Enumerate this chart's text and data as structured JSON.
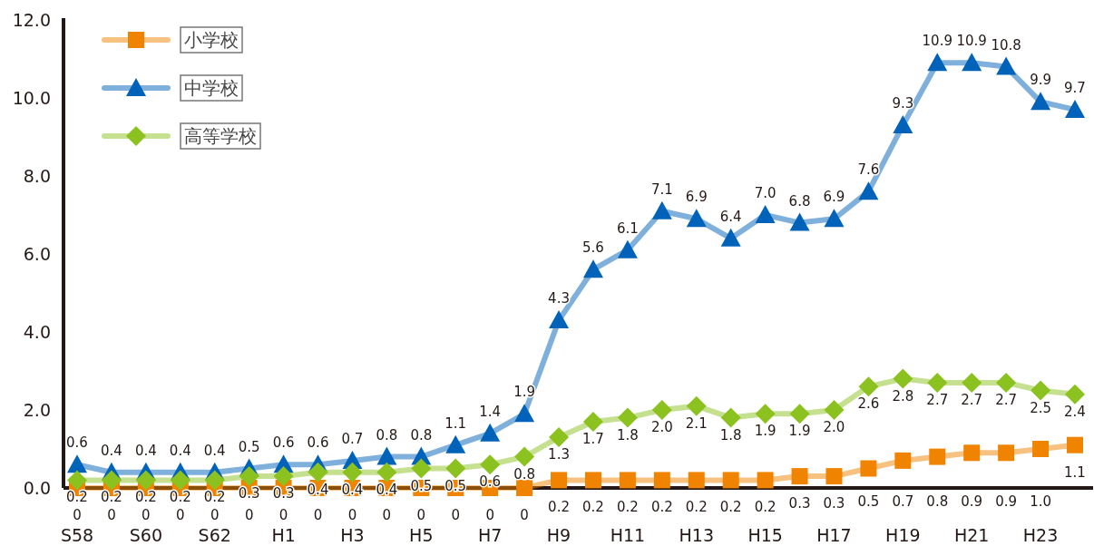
{
  "chart_data": {
    "type": "line",
    "categories": [
      "S58",
      null,
      "S60",
      null,
      "S62",
      null,
      "H1",
      null,
      "H3",
      null,
      "H5",
      null,
      "H7",
      null,
      "H9",
      null,
      "H11",
      null,
      "H13",
      null,
      "H15",
      null,
      "H17",
      null,
      "H19",
      null,
      "H21",
      null,
      "H23",
      null
    ],
    "series": [
      {
        "name": "小学校",
        "color": "#f08300",
        "marker": "square",
        "values": [
          0,
          0,
          0,
          0,
          0,
          0,
          0,
          0,
          0,
          0,
          0,
          0,
          0,
          0,
          0.2,
          0.2,
          0.2,
          0.2,
          0.2,
          0.2,
          0.2,
          0.3,
          0.3,
          0.5,
          0.7,
          0.8,
          0.9,
          0.9,
          1.0,
          1.1
        ],
        "value_labels": [
          "0",
          "0",
          "0",
          "0",
          "0",
          "0",
          "0",
          "0",
          "0",
          "0",
          "0",
          "0",
          "0",
          "0",
          "0.2",
          "0.2",
          "0.2",
          "0.2",
          "0.2",
          "0.2",
          "0.2",
          "0.3",
          "0.3",
          "0.5",
          "0.7",
          "0.8",
          "0.9",
          "0.9",
          "1.0",
          "1.1"
        ]
      },
      {
        "name": "中学校",
        "color": "#0062b8",
        "marker": "triangle",
        "values": [
          0.6,
          0.4,
          0.4,
          0.4,
          0.4,
          0.5,
          0.6,
          0.6,
          0.7,
          0.8,
          0.8,
          1.1,
          1.4,
          1.9,
          4.3,
          5.6,
          6.1,
          7.1,
          6.9,
          6.4,
          7.0,
          6.8,
          6.9,
          7.6,
          9.3,
          10.9,
          10.9,
          10.8,
          9.9,
          9.7
        ],
        "value_labels": [
          "0.6",
          "0.4",
          "0.4",
          "0.4",
          "0.4",
          "0.5",
          "0.6",
          "0.6",
          "0.7",
          "0.8",
          "0.8",
          "1.1",
          "1.4",
          "1.9",
          "4.3",
          "5.6",
          "6.1",
          "7.1",
          "6.9",
          "6.4",
          "7.0",
          "6.8",
          "6.9",
          "7.6",
          "9.3",
          "10.9",
          "10.9",
          "10.8",
          "9.9",
          "9.7"
        ]
      },
      {
        "name": "高等学校",
        "color": "#8cc21f",
        "marker": "diamond",
        "values": [
          0.2,
          0.2,
          0.2,
          0.2,
          0.2,
          0.3,
          0.3,
          0.4,
          0.4,
          0.4,
          0.5,
          0.5,
          0.6,
          0.8,
          1.3,
          1.7,
          1.8,
          2.0,
          2.1,
          1.8,
          1.9,
          1.9,
          2.0,
          2.6,
          2.8,
          2.7,
          2.7,
          2.7,
          2.5,
          2.4
        ],
        "value_labels": [
          "0.2",
          "0.2",
          "0.2",
          "0.2",
          "0.2",
          "0.3",
          "0.3",
          "0.4",
          "0.4",
          "0.4",
          "0.5",
          "0.5",
          "0.6",
          "0.8",
          "1.3",
          "1.7",
          "1.8",
          "2.0",
          "2.1",
          "1.8",
          "1.9",
          "1.9",
          "2.0",
          "2.6",
          "2.8",
          "2.7",
          "2.7",
          "2.7",
          "2.5",
          "2.4"
        ]
      }
    ],
    "ylim": [
      0,
      12
    ],
    "yticks": [
      {
        "value": 0,
        "label": "0.0"
      },
      {
        "value": 2,
        "label": "2.0"
      },
      {
        "value": 4,
        "label": "4.0"
      },
      {
        "value": 6,
        "label": "6.0"
      },
      {
        "value": 8,
        "label": "8.0"
      },
      {
        "value": 10,
        "label": "10.0"
      },
      {
        "value": 12,
        "label": "12.0"
      }
    ],
    "grid": false,
    "legend": "top left"
  }
}
